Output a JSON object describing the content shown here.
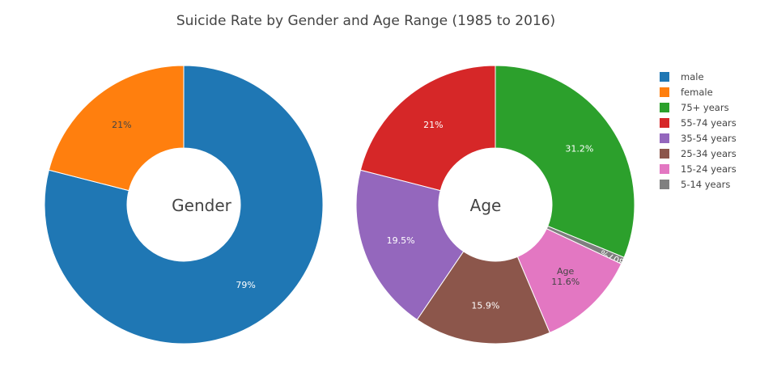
{
  "chart_data": {
    "type": "pie",
    "title": "Suicide Rate by Gender and Age Range (1985 to 2016)",
    "charts": [
      {
        "hole_label": "Gender",
        "slices": [
          {
            "label": "male",
            "value": 79,
            "text": "79%",
            "color": "#1f77b4",
            "text_color": "#ffffff"
          },
          {
            "label": "female",
            "value": 21,
            "text": "21%",
            "color": "#ff7f0e",
            "text_color": "#444444"
          }
        ]
      },
      {
        "hole_label": "Age",
        "slices": [
          {
            "label": "75+ years",
            "value": 31.2,
            "text": "31.2%",
            "color": "#2ca02c",
            "text_color": "#ffffff"
          },
          {
            "label": "5-14 years",
            "value": 0.807,
            "text": "0.807%",
            "color": "#7f7f7f",
            "text_color": "#ffffff"
          },
          {
            "label": "15-24 years",
            "value": 11.6,
            "text": "11.6%",
            "hover_name": "Age",
            "color": "#e377c2",
            "text_color": "#444444"
          },
          {
            "label": "25-34 years",
            "value": 15.9,
            "text": "15.9%",
            "color": "#8c564b",
            "text_color": "#ffffff"
          },
          {
            "label": "35-54 years",
            "value": 19.5,
            "text": "19.5%",
            "color": "#9467bd",
            "text_color": "#ffffff"
          },
          {
            "label": "55-74 years",
            "value": 21,
            "text": "21%",
            "color": "#d62728",
            "text_color": "#ffffff"
          }
        ]
      }
    ],
    "legend": {
      "placement": "right",
      "items": [
        {
          "label": "male",
          "color": "#1f77b4"
        },
        {
          "label": "female",
          "color": "#ff7f0e"
        },
        {
          "label": "75+ years",
          "color": "#2ca02c"
        },
        {
          "label": "55-74 years",
          "color": "#d62728"
        },
        {
          "label": "35-54 years",
          "color": "#9467bd"
        },
        {
          "label": "25-34 years",
          "color": "#8c564b"
        },
        {
          "label": "15-24 years",
          "color": "#e377c2"
        },
        {
          "label": "5-14 years",
          "color": "#7f7f7f"
        }
      ]
    }
  }
}
